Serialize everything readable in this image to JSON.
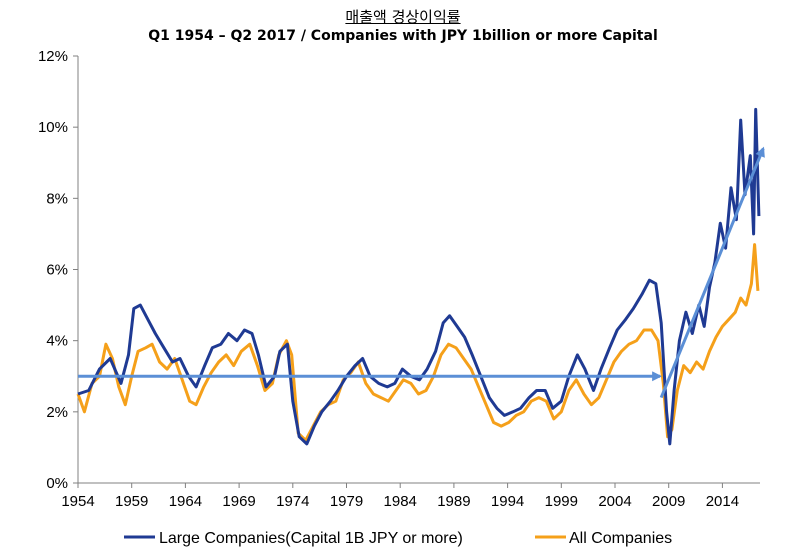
{
  "chart_data": {
    "type": "line",
    "title": "매출액 경상이익률",
    "subtitle": "Q1 1954 – Q2 2017 / Companies with JPY 1billion or more Capital",
    "xlabel": "",
    "ylabel": "",
    "xlim": [
      1954,
      2017.5
    ],
    "ylim": [
      0,
      12
    ],
    "x_ticks": [
      "1954",
      "1959",
      "1964",
      "1969",
      "1974",
      "1979",
      "1984",
      "1989",
      "1994",
      "1999",
      "2004",
      "2009",
      "2014"
    ],
    "y_ticks": [
      "0%",
      "2%",
      "4%",
      "6%",
      "8%",
      "10%",
      "12%"
    ],
    "grid": false,
    "legend_position": "bottom",
    "colors": {
      "large": "#1f3a93",
      "all": "#f5a01a",
      "arrow": "#5b8fd6",
      "axis": "#808080"
    },
    "series": [
      {
        "name": "Large Companies(Capital 1B JPY or more)",
        "points": [
          [
            1954.0,
            2.5
          ],
          [
            1955.0,
            2.6
          ],
          [
            1956.0,
            3.2
          ],
          [
            1957.0,
            3.5
          ],
          [
            1958.0,
            2.8
          ],
          [
            1958.7,
            3.6
          ],
          [
            1959.2,
            4.9
          ],
          [
            1959.8,
            5.0
          ],
          [
            1960.5,
            4.6
          ],
          [
            1961.2,
            4.2
          ],
          [
            1962.0,
            3.8
          ],
          [
            1962.8,
            3.4
          ],
          [
            1963.5,
            3.5
          ],
          [
            1964.3,
            3.0
          ],
          [
            1965.0,
            2.7
          ],
          [
            1965.8,
            3.3
          ],
          [
            1966.5,
            3.8
          ],
          [
            1967.3,
            3.9
          ],
          [
            1968.0,
            4.2
          ],
          [
            1968.8,
            4.0
          ],
          [
            1969.5,
            4.3
          ],
          [
            1970.2,
            4.2
          ],
          [
            1970.8,
            3.6
          ],
          [
            1971.5,
            2.7
          ],
          [
            1972.3,
            3.0
          ],
          [
            1972.8,
            3.7
          ],
          [
            1973.5,
            3.9
          ],
          [
            1974.0,
            2.3
          ],
          [
            1974.6,
            1.3
          ],
          [
            1975.3,
            1.1
          ],
          [
            1976.0,
            1.6
          ],
          [
            1976.7,
            2.0
          ],
          [
            1977.5,
            2.3
          ],
          [
            1978.2,
            2.6
          ],
          [
            1979.0,
            3.0
          ],
          [
            1979.8,
            3.3
          ],
          [
            1980.5,
            3.5
          ],
          [
            1981.2,
            3.0
          ],
          [
            1982.0,
            2.8
          ],
          [
            1982.8,
            2.7
          ],
          [
            1983.5,
            2.8
          ],
          [
            1984.2,
            3.2
          ],
          [
            1985.0,
            3.0
          ],
          [
            1985.8,
            2.9
          ],
          [
            1986.5,
            3.2
          ],
          [
            1987.3,
            3.7
          ],
          [
            1988.0,
            4.5
          ],
          [
            1988.6,
            4.7
          ],
          [
            1989.3,
            4.4
          ],
          [
            1990.0,
            4.1
          ],
          [
            1990.7,
            3.6
          ],
          [
            1991.5,
            3.0
          ],
          [
            1992.3,
            2.4
          ],
          [
            1993.0,
            2.1
          ],
          [
            1993.7,
            1.9
          ],
          [
            1994.5,
            2.0
          ],
          [
            1995.2,
            2.1
          ],
          [
            1996.0,
            2.4
          ],
          [
            1996.7,
            2.6
          ],
          [
            1997.5,
            2.6
          ],
          [
            1998.2,
            2.1
          ],
          [
            1999.0,
            2.3
          ],
          [
            1999.7,
            3.0
          ],
          [
            2000.5,
            3.6
          ],
          [
            2001.2,
            3.2
          ],
          [
            2002.0,
            2.6
          ],
          [
            2002.7,
            3.2
          ],
          [
            2003.5,
            3.8
          ],
          [
            2004.2,
            4.3
          ],
          [
            2005.0,
            4.6
          ],
          [
            2005.7,
            4.9
          ],
          [
            2006.5,
            5.3
          ],
          [
            2007.2,
            5.7
          ],
          [
            2007.8,
            5.6
          ],
          [
            2008.3,
            4.5
          ],
          [
            2008.8,
            2.0
          ],
          [
            2009.1,
            1.1
          ],
          [
            2009.5,
            2.6
          ],
          [
            2010.0,
            4.0
          ],
          [
            2010.6,
            4.8
          ],
          [
            2011.2,
            4.2
          ],
          [
            2011.8,
            5.0
          ],
          [
            2012.3,
            4.4
          ],
          [
            2012.8,
            5.5
          ],
          [
            2013.3,
            6.2
          ],
          [
            2013.8,
            7.3
          ],
          [
            2014.3,
            6.6
          ],
          [
            2014.8,
            8.3
          ],
          [
            2015.3,
            7.4
          ],
          [
            2015.7,
            10.2
          ],
          [
            2016.1,
            8.1
          ],
          [
            2016.6,
            9.2
          ],
          [
            2016.9,
            7.0
          ],
          [
            2017.1,
            10.5
          ],
          [
            2017.4,
            7.5
          ]
        ]
      },
      {
        "name": "All Companies",
        "points": [
          [
            1954.0,
            2.5
          ],
          [
            1954.6,
            2.0
          ],
          [
            1955.3,
            2.8
          ],
          [
            1956.0,
            3.0
          ],
          [
            1956.6,
            3.9
          ],
          [
            1957.2,
            3.5
          ],
          [
            1957.8,
            2.7
          ],
          [
            1958.4,
            2.2
          ],
          [
            1959.0,
            3.0
          ],
          [
            1959.6,
            3.7
          ],
          [
            1960.3,
            3.8
          ],
          [
            1960.9,
            3.9
          ],
          [
            1961.6,
            3.4
          ],
          [
            1962.3,
            3.2
          ],
          [
            1963.0,
            3.5
          ],
          [
            1963.7,
            2.9
          ],
          [
            1964.4,
            2.3
          ],
          [
            1965.0,
            2.2
          ],
          [
            1965.7,
            2.7
          ],
          [
            1966.4,
            3.1
          ],
          [
            1967.1,
            3.4
          ],
          [
            1967.8,
            3.6
          ],
          [
            1968.5,
            3.3
          ],
          [
            1969.2,
            3.7
          ],
          [
            1970.0,
            3.9
          ],
          [
            1970.7,
            3.3
          ],
          [
            1971.4,
            2.6
          ],
          [
            1972.1,
            2.8
          ],
          [
            1972.7,
            3.6
          ],
          [
            1973.4,
            4.0
          ],
          [
            1973.9,
            3.6
          ],
          [
            1974.5,
            1.4
          ],
          [
            1975.2,
            1.2
          ],
          [
            1975.9,
            1.6
          ],
          [
            1976.6,
            2.0
          ],
          [
            1977.3,
            2.2
          ],
          [
            1978.0,
            2.3
          ],
          [
            1978.7,
            2.9
          ],
          [
            1979.4,
            3.1
          ],
          [
            1980.1,
            3.4
          ],
          [
            1980.8,
            2.8
          ],
          [
            1981.5,
            2.5
          ],
          [
            1982.2,
            2.4
          ],
          [
            1982.9,
            2.3
          ],
          [
            1983.6,
            2.6
          ],
          [
            1984.3,
            2.9
          ],
          [
            1985.0,
            2.8
          ],
          [
            1985.7,
            2.5
          ],
          [
            1986.4,
            2.6
          ],
          [
            1987.1,
            3.0
          ],
          [
            1987.8,
            3.6
          ],
          [
            1988.5,
            3.9
          ],
          [
            1989.2,
            3.8
          ],
          [
            1989.9,
            3.5
          ],
          [
            1990.6,
            3.2
          ],
          [
            1991.3,
            2.7
          ],
          [
            1992.0,
            2.2
          ],
          [
            1992.7,
            1.7
          ],
          [
            1993.4,
            1.6
          ],
          [
            1994.1,
            1.7
          ],
          [
            1994.8,
            1.9
          ],
          [
            1995.5,
            2.0
          ],
          [
            1996.2,
            2.3
          ],
          [
            1996.9,
            2.4
          ],
          [
            1997.6,
            2.3
          ],
          [
            1998.3,
            1.8
          ],
          [
            1999.0,
            2.0
          ],
          [
            1999.7,
            2.6
          ],
          [
            2000.4,
            2.9
          ],
          [
            2001.1,
            2.5
          ],
          [
            2001.8,
            2.2
          ],
          [
            2002.5,
            2.4
          ],
          [
            2003.2,
            2.9
          ],
          [
            2003.9,
            3.4
          ],
          [
            2004.6,
            3.7
          ],
          [
            2005.3,
            3.9
          ],
          [
            2006.0,
            4.0
          ],
          [
            2006.7,
            4.3
          ],
          [
            2007.4,
            4.3
          ],
          [
            2008.0,
            4.0
          ],
          [
            2008.5,
            2.8
          ],
          [
            2008.9,
            1.3
          ],
          [
            2009.3,
            1.5
          ],
          [
            2009.8,
            2.6
          ],
          [
            2010.4,
            3.3
          ],
          [
            2011.0,
            3.1
          ],
          [
            2011.6,
            3.4
          ],
          [
            2012.2,
            3.2
          ],
          [
            2012.8,
            3.7
          ],
          [
            2013.4,
            4.1
          ],
          [
            2014.0,
            4.4
          ],
          [
            2014.6,
            4.6
          ],
          [
            2015.2,
            4.8
          ],
          [
            2015.7,
            5.2
          ],
          [
            2016.2,
            5.0
          ],
          [
            2016.7,
            5.6
          ],
          [
            2017.0,
            6.7
          ],
          [
            2017.3,
            5.4
          ]
        ]
      }
    ],
    "arrows": [
      {
        "from": [
          1954.0,
          3.0
        ],
        "to": [
          2008.2,
          3.0
        ]
      },
      {
        "from": [
          2008.3,
          2.4
        ],
        "to": [
          2017.8,
          9.4
        ]
      }
    ]
  }
}
